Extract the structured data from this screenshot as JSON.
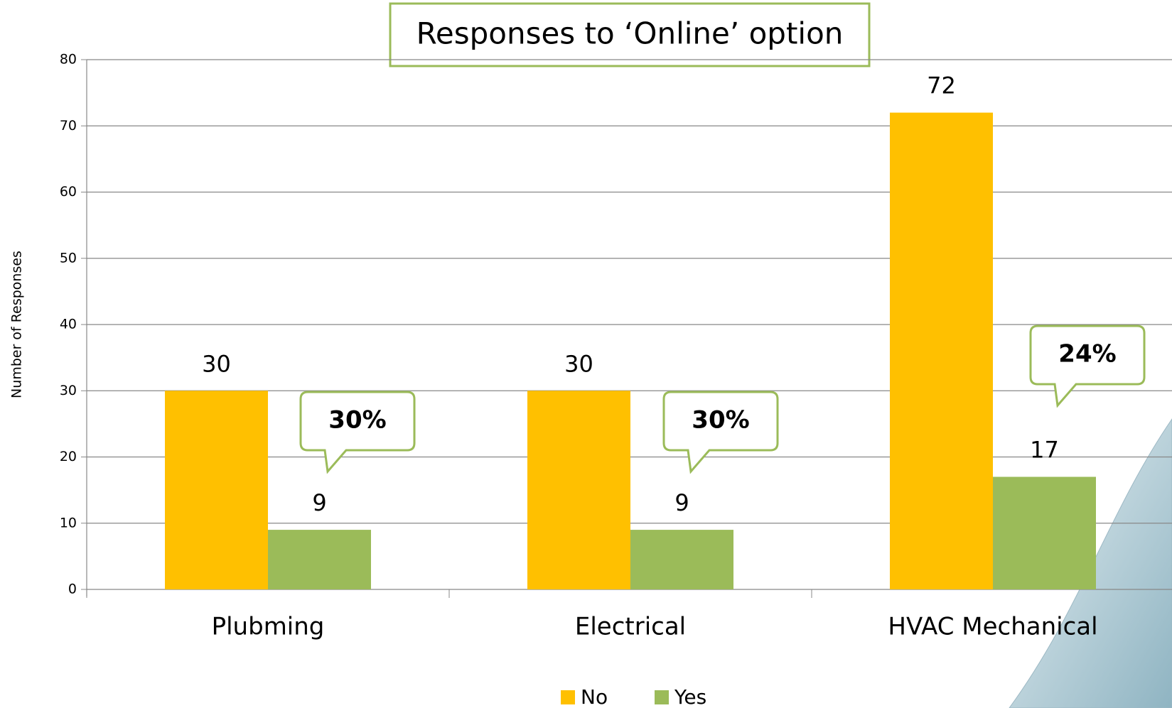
{
  "chart_data": {
    "type": "bar",
    "title": "Responses to ‘Online’ option",
    "y_label": "Number of Responses",
    "categories": [
      "Plubming",
      "Electrical",
      "HVAC Mechanical"
    ],
    "series": [
      {
        "name": "No",
        "color": "#FFC000",
        "values": [
          30,
          30,
          72
        ]
      },
      {
        "name": "Yes",
        "color": "#9BBB59",
        "values": [
          9,
          9,
          17
        ]
      }
    ],
    "annotations": [
      "30%",
      "30%",
      "24%"
    ],
    "ylim": [
      0,
      80
    ],
    "yticks": [
      0,
      10,
      20,
      30,
      40,
      50,
      60,
      70,
      80
    ],
    "grid": true,
    "legend": "bottom"
  }
}
